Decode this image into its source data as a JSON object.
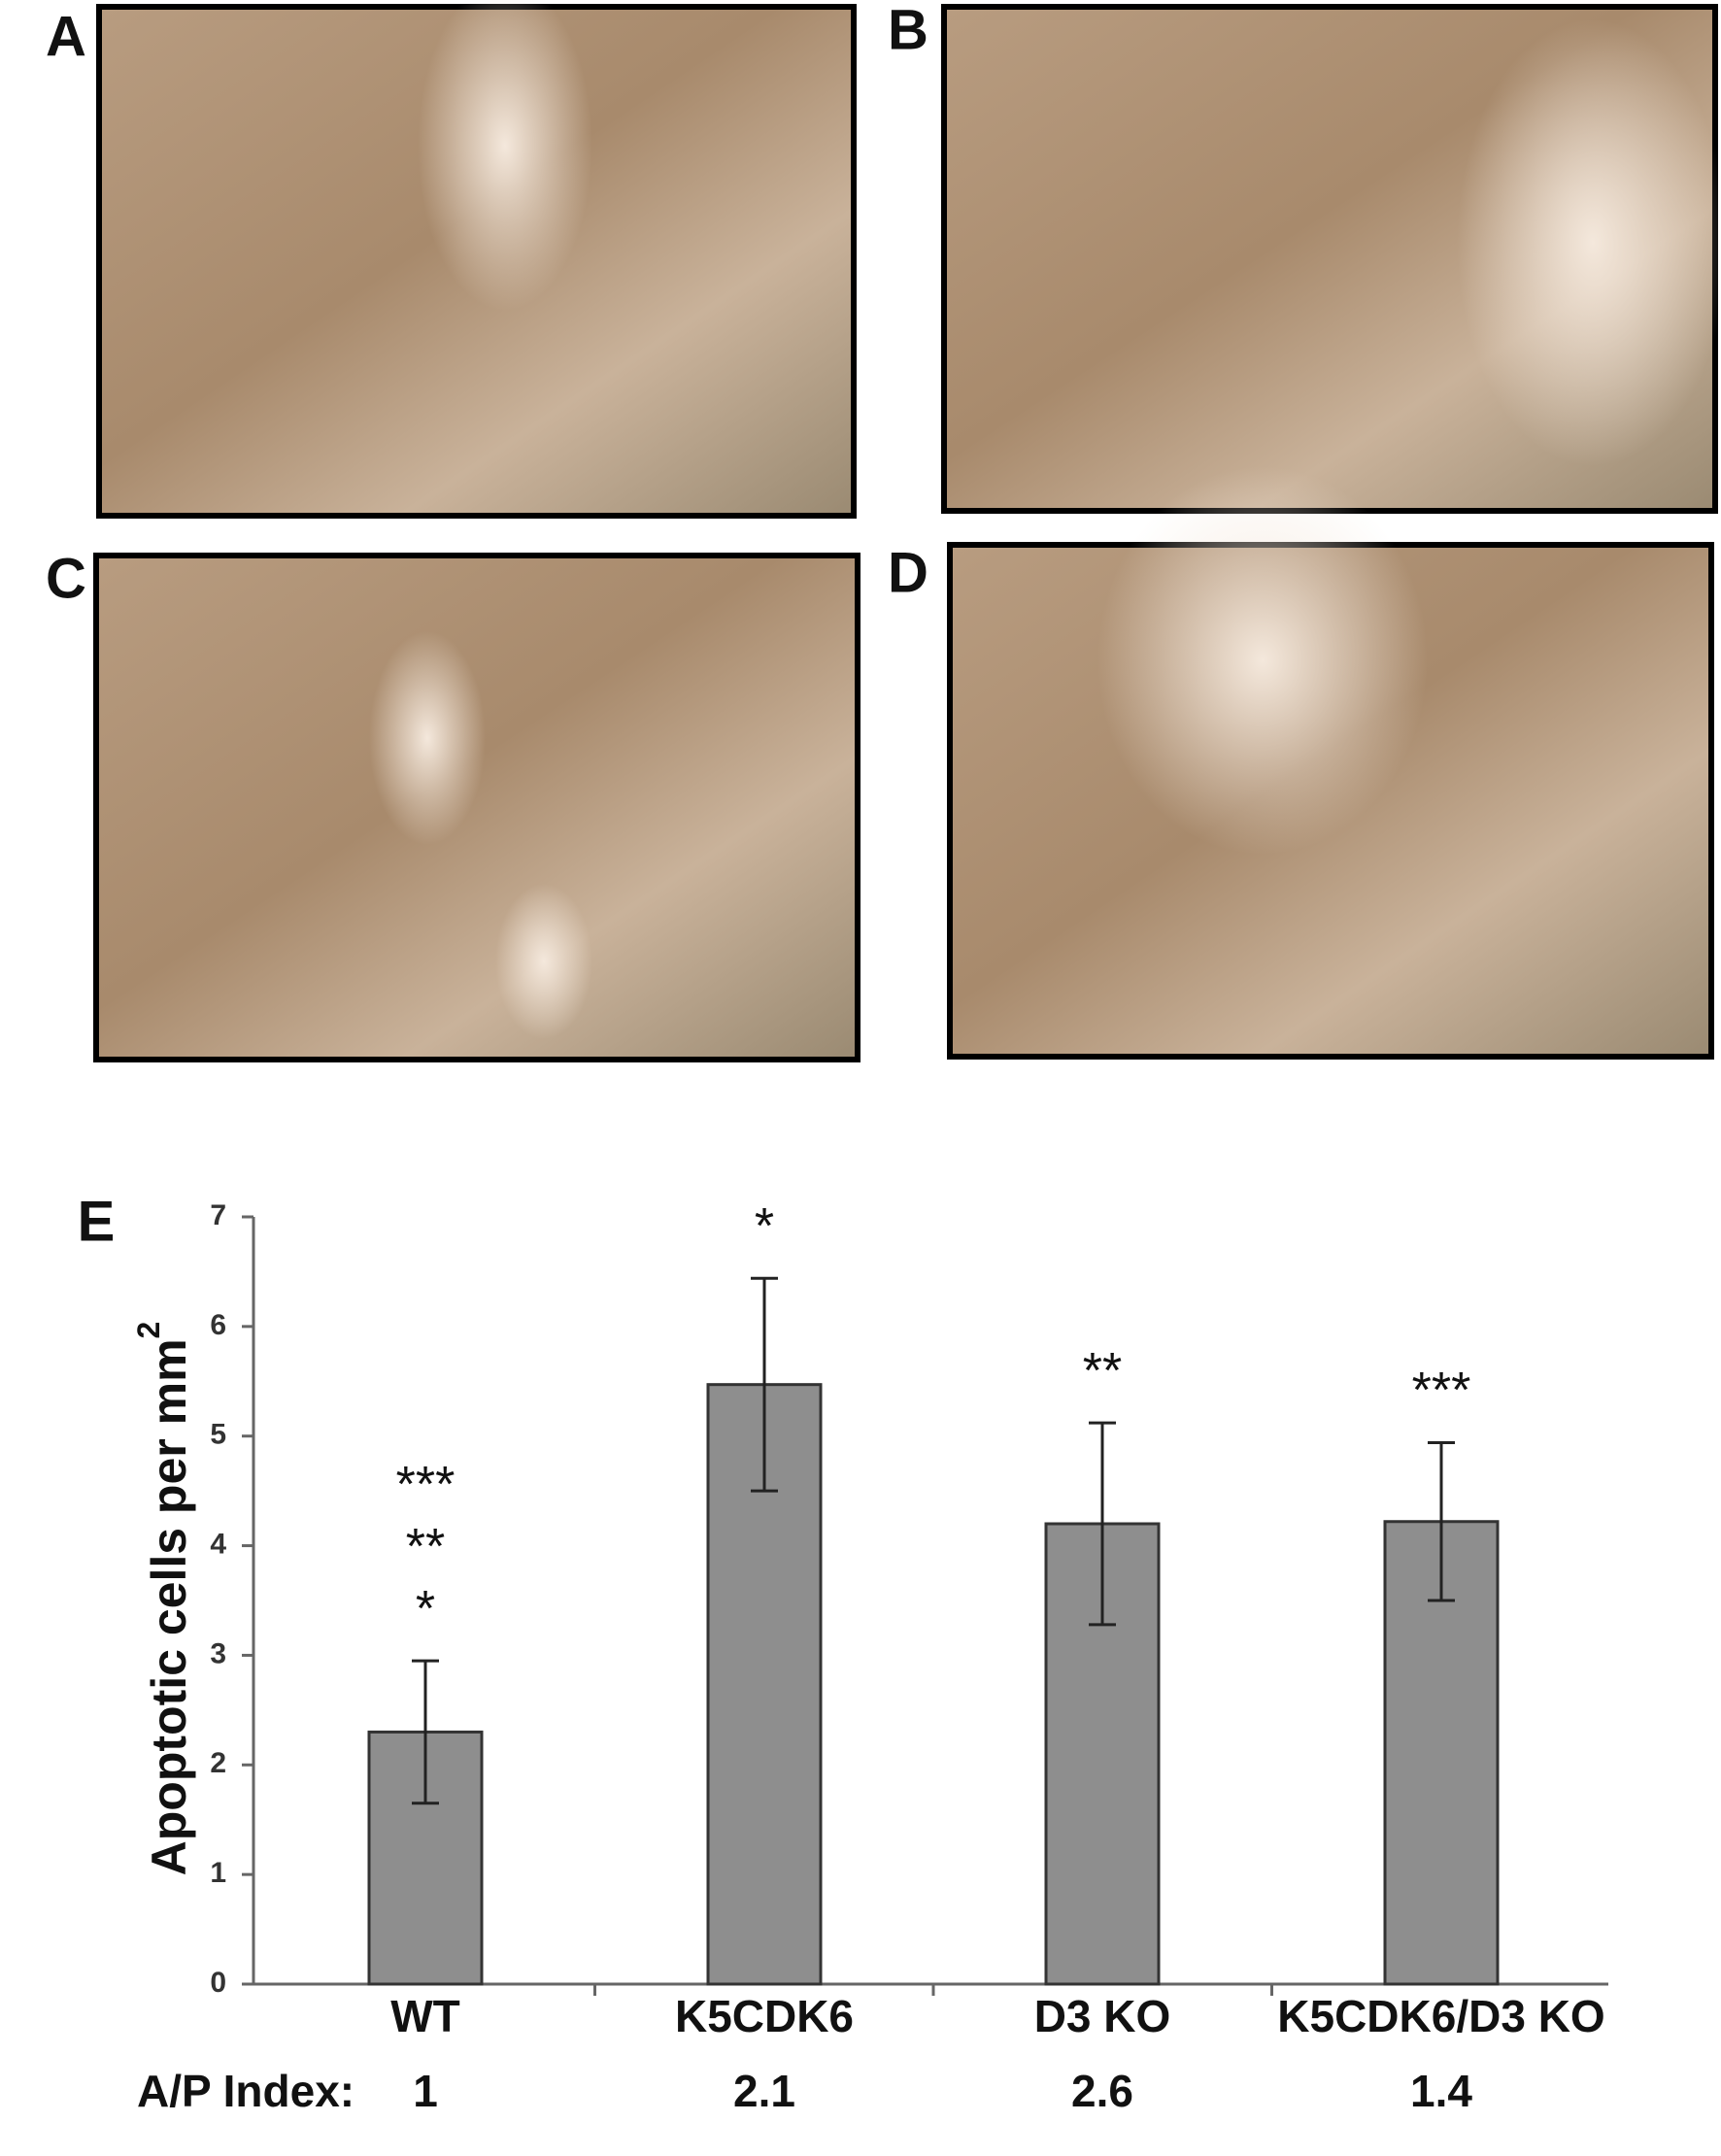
{
  "chart_data": {
    "type": "bar",
    "panel_labels": [
      "A",
      "B",
      "C",
      "D"
    ],
    "chart_label": "E",
    "ylabel": "Apoptotic cells per mm",
    "ylabel_superscript": "2",
    "categories": [
      "WT",
      "K5CDK6",
      "D3 KO",
      "K5CDK6/D3 KO"
    ],
    "values": [
      2.3,
      5.47,
      4.2,
      4.22
    ],
    "errors": [
      0.65,
      0.97,
      0.92,
      0.72
    ],
    "color": "#8e8e8e",
    "annotations": [
      [
        "***",
        "**",
        "*"
      ],
      [
        "*"
      ],
      [
        "**"
      ],
      [
        "***"
      ]
    ],
    "index_label": "A/P Index:",
    "index_values": [
      "1",
      "2.1",
      "2.6",
      "1.4"
    ],
    "ylim": [
      0,
      7
    ],
    "yticks": [
      0,
      1,
      2,
      3,
      4,
      5,
      6,
      7
    ]
  }
}
